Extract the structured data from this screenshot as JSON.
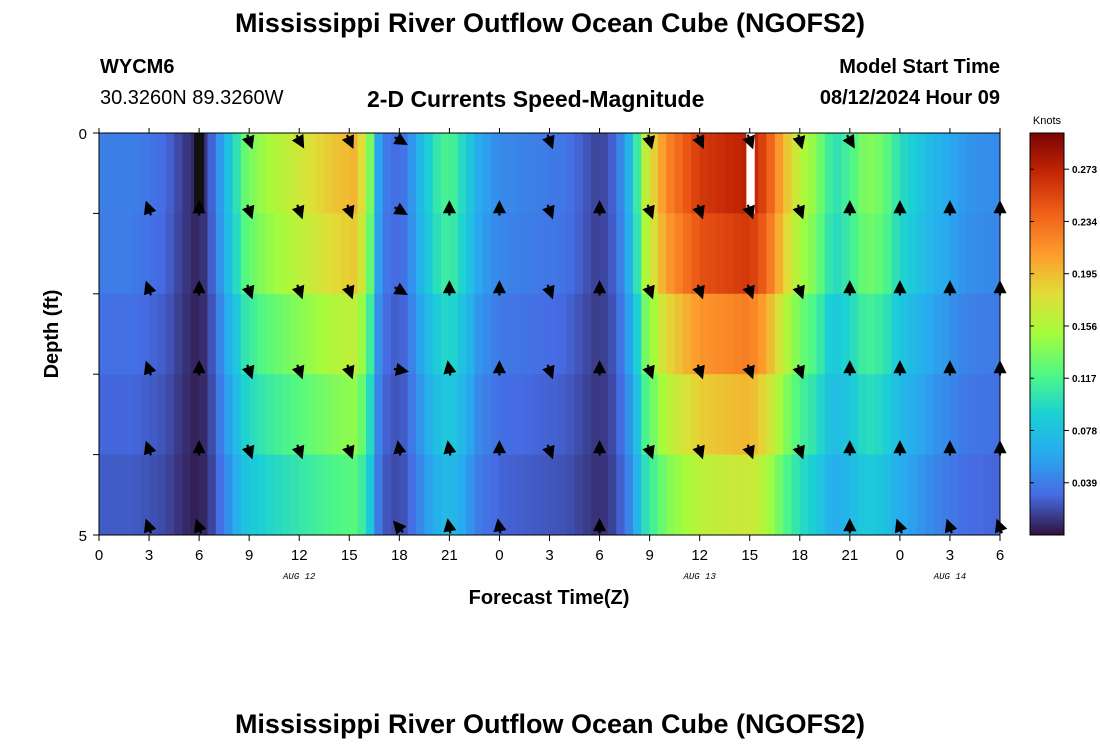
{
  "page": {
    "title_top": "Mississippi River Outflow Ocean Cube (NGOFS2)",
    "title_bottom": "Mississippi River Outflow Ocean Cube (NGOFS2)",
    "station": "WYCM6",
    "coords": "30.3260N  89.3260W",
    "subtitle": "2-D Currents Speed-Magnitude",
    "model_start_label": "Model Start Time",
    "model_start_value": "08/12/2024 Hour 09"
  },
  "chart_data": {
    "type": "heatmap",
    "title": "2-D Currents Speed-Magnitude",
    "xlabel": "Forecast Time(Z)",
    "ylabel": "Depth (ft)",
    "x_tick_labels": [
      "0",
      "3",
      "6",
      "9",
      "12",
      "15",
      "18",
      "21",
      "0",
      "3",
      "6",
      "9",
      "12",
      "15",
      "18",
      "21",
      "0",
      "3",
      "6"
    ],
    "x_range_hours": [
      0,
      54
    ],
    "y_tick_labels": [
      "0",
      "5"
    ],
    "y_range_ft": [
      0,
      5
    ],
    "depth_layers": 5,
    "date_labels": [
      {
        "text": "AUG 12",
        "hour": 12
      },
      {
        "text": "AUG 13",
        "hour": 36
      },
      {
        "text": "AUG 14",
        "hour": 51
      }
    ],
    "colorbar": {
      "unit": "Knots",
      "range": [
        0,
        0.3
      ],
      "tick_labels": [
        "0.273",
        "0.234",
        "0.195",
        "0.156",
        "0.117",
        "0.078",
        "0.039"
      ],
      "tick_values": [
        0.273,
        0.234,
        0.195,
        0.156,
        0.117,
        0.078,
        0.039
      ]
    },
    "speed_profile_surface": [
      [
        0,
        0.04
      ],
      [
        2,
        0.04
      ],
      [
        4,
        0.03
      ],
      [
        5,
        0.015
      ],
      [
        6,
        0.005
      ],
      [
        6.6,
        0.02
      ],
      [
        7.2,
        0.05
      ],
      [
        8,
        0.09
      ],
      [
        8.8,
        0.13
      ],
      [
        10,
        0.15
      ],
      [
        12,
        0.17
      ],
      [
        14,
        0.19
      ],
      [
        15.5,
        0.2
      ],
      [
        16.3,
        0.13
      ],
      [
        16.8,
        0.05
      ],
      [
        17.5,
        0.03
      ],
      [
        18.3,
        0.035
      ],
      [
        19,
        0.06
      ],
      [
        20,
        0.1
      ],
      [
        21,
        0.12
      ],
      [
        22,
        0.09
      ],
      [
        22.8,
        0.06
      ],
      [
        24,
        0.045
      ],
      [
        26,
        0.04
      ],
      [
        28,
        0.035
      ],
      [
        29.5,
        0.02
      ],
      [
        30,
        0.015
      ],
      [
        31,
        0.03
      ],
      [
        32,
        0.08
      ],
      [
        32.7,
        0.16
      ],
      [
        34,
        0.22
      ],
      [
        36,
        0.26
      ],
      [
        38,
        0.27
      ],
      [
        39,
        0.275
      ],
      [
        40,
        0.25
      ],
      [
        41,
        0.2
      ],
      [
        42,
        0.16
      ],
      [
        43,
        0.14
      ],
      [
        44,
        0.1
      ],
      [
        45,
        0.115
      ],
      [
        46,
        0.14
      ],
      [
        47,
        0.13
      ],
      [
        48,
        0.1
      ],
      [
        49,
        0.085
      ],
      [
        50,
        0.07
      ],
      [
        51,
        0.06
      ],
      [
        52,
        0.05
      ],
      [
        54,
        0.045
      ]
    ],
    "layer_factors": [
      1.0,
      0.95,
      0.82,
      0.72,
      0.62,
      0.5
    ],
    "missing_cells": [
      {
        "hour_from": 5.7,
        "hour_to": 6.3,
        "layer": 0,
        "fill": "#111111"
      },
      {
        "hour_from": 38.8,
        "hour_to": 39.3,
        "layer": 0,
        "fill": "#ffffff"
      }
    ],
    "vector_hours": [
      3,
      6,
      9,
      12,
      15,
      18,
      21,
      24,
      27,
      30,
      33,
      36,
      39,
      42,
      45,
      48,
      51,
      54
    ],
    "vector_rows": [
      [
        null,
        null,
        160,
        150,
        155,
        120,
        null,
        null,
        160,
        null,
        165,
        155,
        160,
        165,
        150,
        null,
        null,
        null
      ],
      [
        -20,
        0,
        160,
        160,
        160,
        120,
        0,
        0,
        160,
        0,
        160,
        160,
        160,
        160,
        0,
        0,
        0,
        0
      ],
      [
        -20,
        0,
        160,
        160,
        160,
        120,
        0,
        0,
        160,
        0,
        160,
        160,
        160,
        160,
        0,
        0,
        0,
        0
      ],
      [
        -20,
        0,
        160,
        160,
        160,
        100,
        -10,
        0,
        160,
        0,
        160,
        160,
        160,
        160,
        0,
        0,
        0,
        0
      ],
      [
        -20,
        0,
        160,
        160,
        160,
        -10,
        -10,
        0,
        160,
        0,
        160,
        160,
        160,
        160,
        0,
        0,
        0,
        0
      ],
      [
        -20,
        -20,
        null,
        null,
        null,
        -40,
        -10,
        -10,
        null,
        0,
        null,
        null,
        null,
        null,
        0,
        -20,
        -20,
        -20
      ]
    ]
  }
}
